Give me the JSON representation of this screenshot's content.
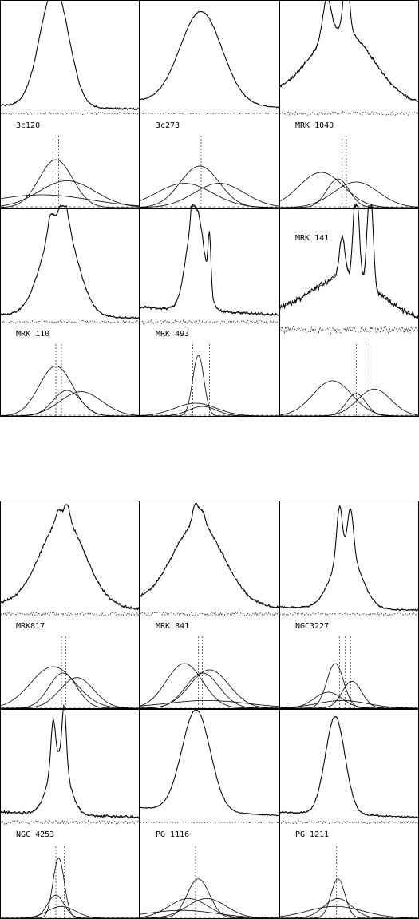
{
  "chart_data": [
    {
      "type": "line",
      "group": "top",
      "panels": [
        {
          "label": "3c120",
          "center": 0.38,
          "width": 0.1,
          "peak": 1.0,
          "tail": 0.06,
          "wing": 0.55,
          "noise": 0.02,
          "narrow": [],
          "components": [
            [
              0.4,
              0.12,
              0.75
            ],
            [
              0.48,
              0.2,
              0.42
            ],
            [
              0.3,
              0.35,
              0.2
            ]
          ],
          "dashed": [
            0.38,
            0.42
          ]
        },
        {
          "label": "3c273",
          "center": 0.44,
          "width": 0.15,
          "peak": 0.85,
          "tail": 0.1,
          "wing": 0.0,
          "noise": 0.01,
          "narrow": [],
          "components": [
            [
              0.43,
              0.14,
              0.65
            ],
            [
              0.32,
              0.2,
              0.38
            ],
            [
              0.57,
              0.18,
              0.38
            ]
          ],
          "dashed": [
            0.44
          ]
        },
        {
          "label": "MRK 1040",
          "center": 0.45,
          "width": 0.22,
          "peak": 0.65,
          "tail": 0.15,
          "wing": 0.0,
          "noise": 0.03,
          "narrow": [
            [
              0.34,
              0.03,
              0.35
            ],
            [
              0.48,
              0.02,
              0.55
            ]
          ],
          "components": [
            [
              0.3,
              0.16,
              0.55
            ],
            [
              0.42,
              0.08,
              0.45
            ],
            [
              0.55,
              0.16,
              0.4
            ]
          ],
          "dashed": [
            0.45,
            0.48
          ]
        }
      ]
    },
    {
      "type": "line",
      "group": "middle",
      "panels": [
        {
          "label": "MRK 110",
          "center": 0.42,
          "width": 0.12,
          "peak": 0.85,
          "tail": 0.05,
          "wing": 0.3,
          "noise": 0.02,
          "narrow": [
            [
              0.36,
              0.02,
              0.15
            ],
            [
              0.46,
              0.03,
              0.2
            ]
          ],
          "components": [
            [
              0.4,
              0.12,
              0.78
            ],
            [
              0.48,
              0.1,
              0.4
            ],
            [
              0.58,
              0.15,
              0.38
            ]
          ],
          "dashed": [
            0.4,
            0.44
          ]
        },
        {
          "label": "MRK 493",
          "center": 0.4,
          "width": 0.06,
          "peak": 0.95,
          "tail": 0.12,
          "wing": 0.0,
          "noise": 0.03,
          "narrow": [
            [
              0.38,
              0.01,
              0.25
            ],
            [
              0.5,
              0.01,
              0.5
            ]
          ],
          "components": [
            [
              0.42,
              0.04,
              0.95
            ],
            [
              0.4,
              0.15,
              0.2
            ],
            [
              0.45,
              0.1,
              0.15
            ]
          ],
          "dashed": [
            0.38,
            0.5
          ]
        },
        {
          "label": "MRK 141",
          "center": 0.48,
          "width": 0.25,
          "peak": 0.35,
          "tail": 0.12,
          "wing": 0.0,
          "noise": 0.06,
          "narrow": [
            [
              0.45,
              0.02,
              0.35
            ],
            [
              0.55,
              0.02,
              0.85
            ],
            [
              0.65,
              0.02,
              0.9
            ]
          ],
          "components": [
            [
              0.38,
              0.14,
              0.55
            ],
            [
              0.55,
              0.07,
              0.35
            ],
            [
              0.68,
              0.12,
              0.42
            ]
          ],
          "dashed": [
            0.55,
            0.62,
            0.65
          ]
        }
      ]
    },
    {
      "type": "line",
      "group": "lower",
      "panels": [
        {
          "label": "MRK817",
          "center": 0.45,
          "width": 0.16,
          "peak": 0.8,
          "tail": 0.08,
          "wing": 0.0,
          "noise": 0.03,
          "narrow": [
            [
              0.42,
              0.02,
              0.1
            ],
            [
              0.48,
              0.02,
              0.15
            ]
          ],
          "components": [
            [
              0.38,
              0.16,
              0.65
            ],
            [
              0.45,
              0.1,
              0.55
            ],
            [
              0.55,
              0.12,
              0.48
            ]
          ],
          "dashed": [
            0.44,
            0.47
          ]
        },
        {
          "label": "MRK 841",
          "center": 0.42,
          "width": 0.18,
          "peak": 0.75,
          "tail": 0.1,
          "wing": 0.0,
          "noise": 0.03,
          "narrow": [
            [
              0.4,
              0.02,
              0.18
            ],
            [
              0.45,
              0.02,
              0.12
            ]
          ],
          "components": [
            [
              0.32,
              0.13,
              0.7
            ],
            [
              0.45,
              0.12,
              0.55
            ],
            [
              0.5,
              0.14,
              0.6
            ],
            [
              0.48,
              0.3,
              0.12
            ]
          ],
          "dashed": [
            0.42,
            0.45
          ]
        },
        {
          "label": "NGC3227",
          "center": 0.48,
          "width": 0.1,
          "peak": 0.55,
          "tail": 0.05,
          "wing": 0.0,
          "noise": 0.02,
          "narrow": [
            [
              0.43,
              0.02,
              0.45
            ],
            [
              0.51,
              0.02,
              0.4
            ]
          ],
          "components": [
            [
              0.4,
              0.06,
              0.7
            ],
            [
              0.35,
              0.1,
              0.25
            ],
            [
              0.52,
              0.07,
              0.42
            ],
            [
              0.45,
              0.18,
              0.12
            ]
          ],
          "dashed": [
            0.43,
            0.47,
            0.51
          ]
        }
      ]
    },
    {
      "type": "line",
      "group": "bottom",
      "panels": [
        {
          "label": "NGC 4253",
          "center": 0.42,
          "width": 0.07,
          "peak": 0.55,
          "tail": 0.08,
          "wing": 0.0,
          "noise": 0.03,
          "narrow": [
            [
              0.38,
              0.015,
              0.4
            ],
            [
              0.46,
              0.015,
              0.55
            ]
          ],
          "components": [
            [
              0.42,
              0.04,
              0.92
            ],
            [
              0.4,
              0.06,
              0.35
            ],
            [
              0.44,
              0.1,
              0.18
            ]
          ],
          "dashed": [
            0.4,
            0.46
          ]
        },
        {
          "label": "PG 1116",
          "center": 0.4,
          "width": 0.1,
          "peak": 0.9,
          "tail": 0.12,
          "wing": 0.2,
          "noise": 0.01,
          "narrow": [],
          "components": [
            [
              0.42,
              0.08,
              0.6
            ],
            [
              0.35,
              0.14,
              0.3
            ],
            [
              0.48,
              0.14,
              0.3
            ],
            [
              0.3,
              0.25,
              0.12
            ]
          ],
          "dashed": [
            0.4
          ]
        },
        {
          "label": "PG 1211",
          "center": 0.4,
          "width": 0.07,
          "peak": 0.9,
          "tail": 0.08,
          "wing": 0.0,
          "noise": 0.02,
          "narrow": [],
          "components": [
            [
              0.42,
              0.05,
              0.6
            ],
            [
              0.42,
              0.1,
              0.3
            ],
            [
              0.4,
              0.2,
              0.18
            ]
          ],
          "dashed": [
            0.41
          ]
        }
      ]
    }
  ]
}
